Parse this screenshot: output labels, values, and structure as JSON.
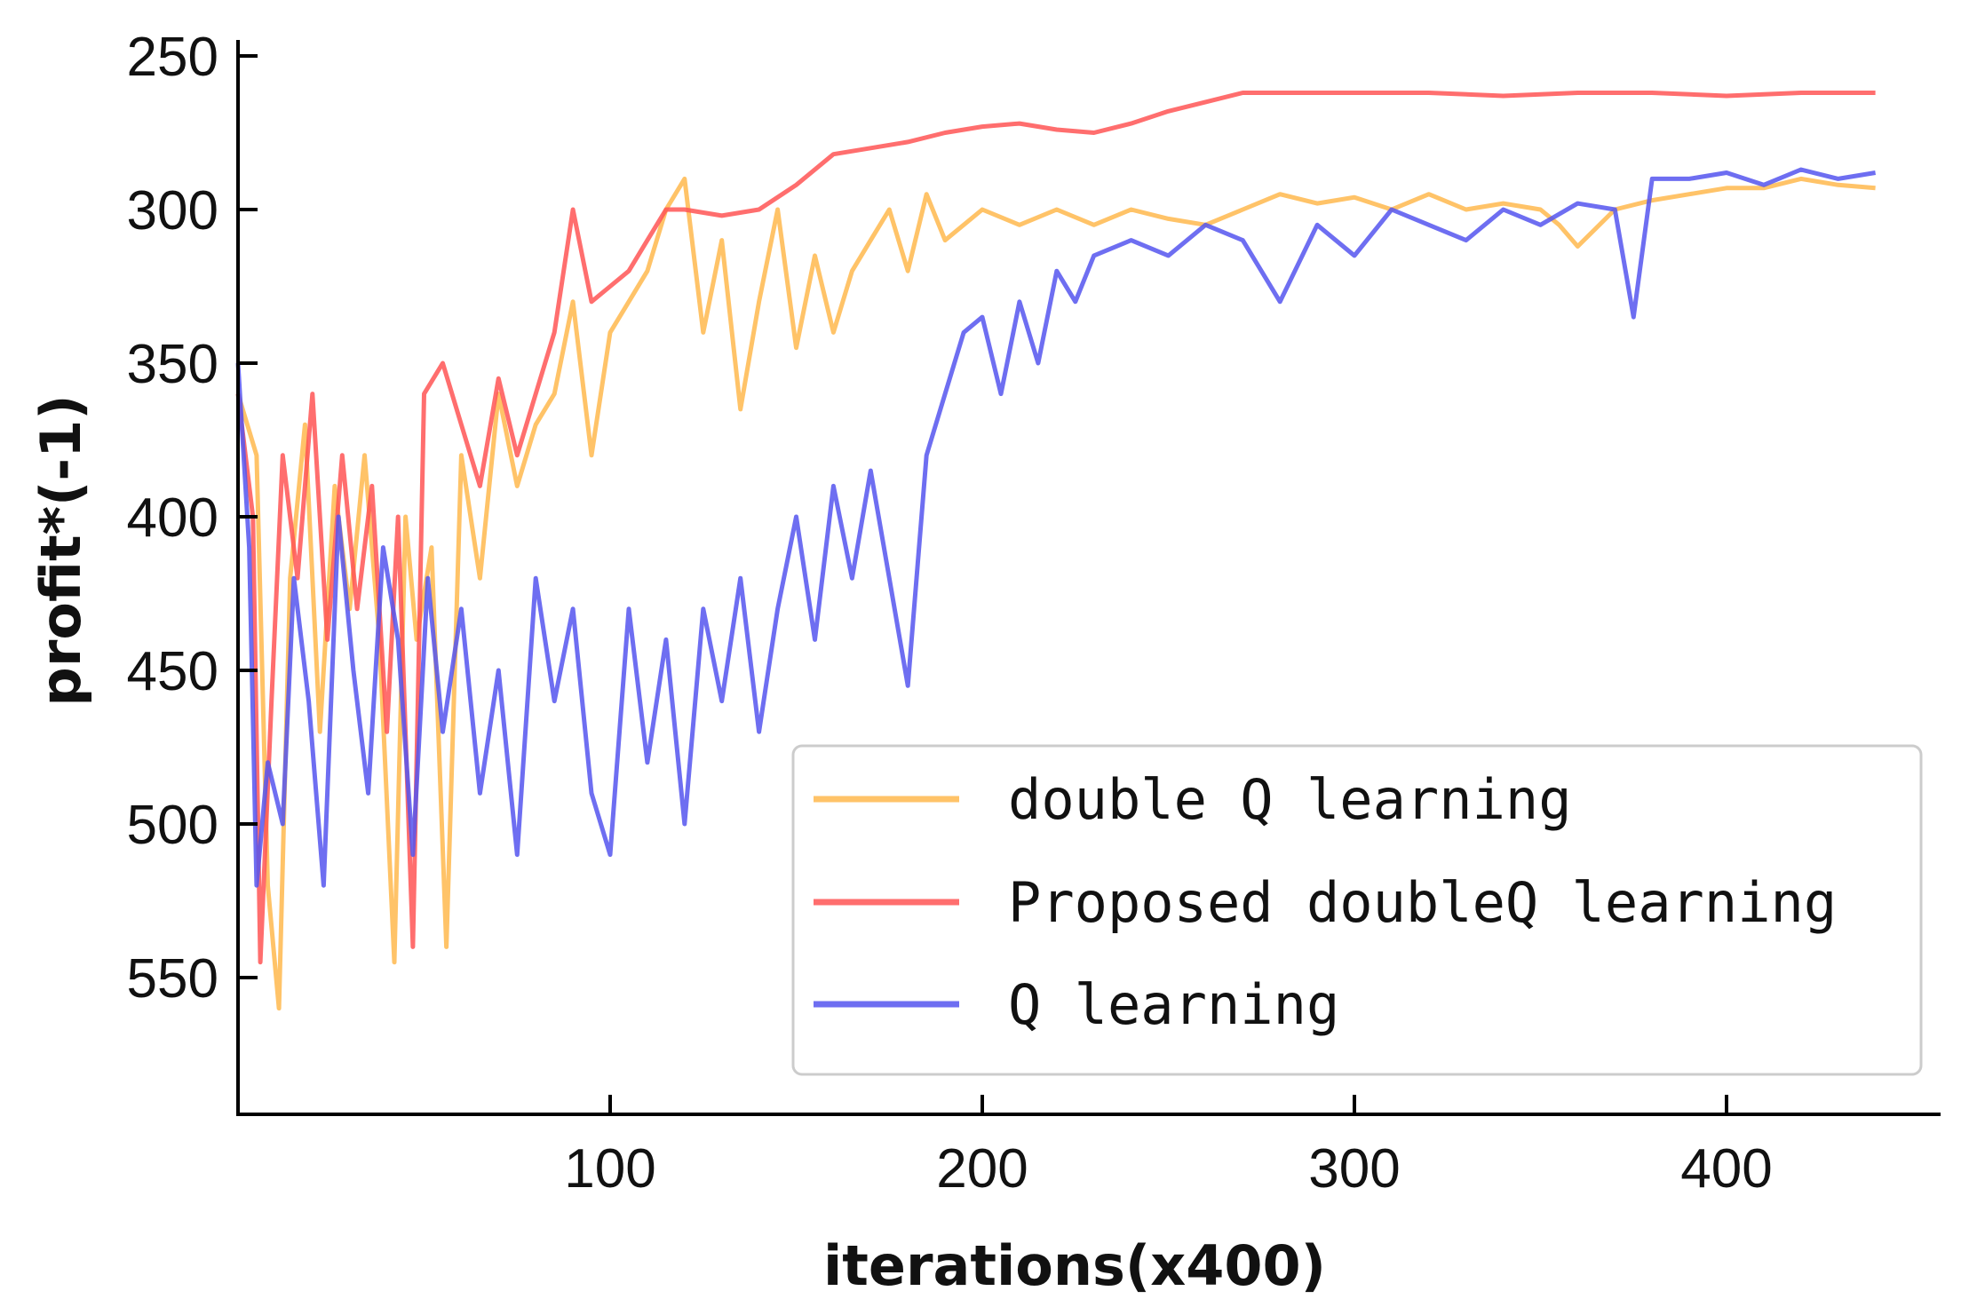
{
  "chart_data": {
    "type": "line",
    "title": "",
    "xlabel": "iterations(x400)",
    "ylabel": "profit*(-1)",
    "xlim": [
      0,
      460
    ],
    "ylim": [
      570,
      245
    ],
    "y_inverted": true,
    "xticks": [
      100,
      200,
      300,
      400
    ],
    "yticks": [
      250,
      300,
      350,
      400,
      450,
      500,
      550
    ],
    "grid": false,
    "legend_position": "lower-right",
    "series": [
      {
        "name": "double Q learning",
        "color": "#ffb84d",
        "points": [
          [
            0,
            360
          ],
          [
            5,
            380
          ],
          [
            8,
            520
          ],
          [
            11,
            560
          ],
          [
            14,
            420
          ],
          [
            18,
            370
          ],
          [
            22,
            470
          ],
          [
            26,
            390
          ],
          [
            30,
            430
          ],
          [
            34,
            380
          ],
          [
            38,
            440
          ],
          [
            42,
            545
          ],
          [
            45,
            400
          ],
          [
            48,
            440
          ],
          [
            52,
            410
          ],
          [
            56,
            540
          ],
          [
            60,
            380
          ],
          [
            65,
            420
          ],
          [
            70,
            360
          ],
          [
            75,
            390
          ],
          [
            80,
            370
          ],
          [
            85,
            360
          ],
          [
            90,
            330
          ],
          [
            95,
            380
          ],
          [
            100,
            340
          ],
          [
            105,
            330
          ],
          [
            110,
            320
          ],
          [
            115,
            300
          ],
          [
            120,
            290
          ],
          [
            125,
            340
          ],
          [
            130,
            310
          ],
          [
            135,
            365
          ],
          [
            140,
            330
          ],
          [
            145,
            300
          ],
          [
            150,
            345
          ],
          [
            155,
            315
          ],
          [
            160,
            340
          ],
          [
            165,
            320
          ],
          [
            170,
            310
          ],
          [
            175,
            300
          ],
          [
            180,
            320
          ],
          [
            185,
            295
          ],
          [
            190,
            310
          ],
          [
            200,
            300
          ],
          [
            210,
            305
          ],
          [
            220,
            300
          ],
          [
            230,
            305
          ],
          [
            240,
            300
          ],
          [
            250,
            303
          ],
          [
            260,
            305
          ],
          [
            270,
            300
          ],
          [
            280,
            295
          ],
          [
            290,
            298
          ],
          [
            300,
            296
          ],
          [
            310,
            300
          ],
          [
            320,
            295
          ],
          [
            330,
            300
          ],
          [
            340,
            298
          ],
          [
            350,
            300
          ],
          [
            355,
            305
          ],
          [
            360,
            312
          ],
          [
            370,
            300
          ],
          [
            380,
            297
          ],
          [
            390,
            295
          ],
          [
            400,
            293
          ],
          [
            410,
            293
          ],
          [
            420,
            290
          ],
          [
            430,
            292
          ],
          [
            440,
            293
          ]
        ]
      },
      {
        "name": "Proposed doubleQ learning",
        "color": "#ff5555",
        "points": [
          [
            0,
            360
          ],
          [
            4,
            400
          ],
          [
            6,
            545
          ],
          [
            9,
            460
          ],
          [
            12,
            380
          ],
          [
            16,
            420
          ],
          [
            20,
            360
          ],
          [
            24,
            440
          ],
          [
            28,
            380
          ],
          [
            32,
            430
          ],
          [
            36,
            390
          ],
          [
            40,
            470
          ],
          [
            43,
            400
          ],
          [
            47,
            540
          ],
          [
            50,
            360
          ],
          [
            55,
            350
          ],
          [
            60,
            370
          ],
          [
            65,
            390
          ],
          [
            70,
            355
          ],
          [
            75,
            380
          ],
          [
            80,
            360
          ],
          [
            85,
            340
          ],
          [
            90,
            300
          ],
          [
            95,
            330
          ],
          [
            100,
            325
          ],
          [
            105,
            320
          ],
          [
            110,
            310
          ],
          [
            115,
            300
          ],
          [
            120,
            300
          ],
          [
            130,
            302
          ],
          [
            140,
            300
          ],
          [
            150,
            292
          ],
          [
            160,
            282
          ],
          [
            170,
            280
          ],
          [
            180,
            278
          ],
          [
            190,
            275
          ],
          [
            200,
            273
          ],
          [
            210,
            272
          ],
          [
            220,
            274
          ],
          [
            230,
            275
          ],
          [
            240,
            272
          ],
          [
            250,
            268
          ],
          [
            260,
            265
          ],
          [
            270,
            262
          ],
          [
            280,
            262
          ],
          [
            300,
            262
          ],
          [
            320,
            262
          ],
          [
            340,
            263
          ],
          [
            360,
            262
          ],
          [
            380,
            262
          ],
          [
            400,
            263
          ],
          [
            420,
            262
          ],
          [
            440,
            262
          ]
        ]
      },
      {
        "name": "Q learning",
        "color": "#5555ee",
        "points": [
          [
            0,
            350
          ],
          [
            3,
            410
          ],
          [
            5,
            520
          ],
          [
            8,
            480
          ],
          [
            12,
            500
          ],
          [
            15,
            420
          ],
          [
            19,
            460
          ],
          [
            23,
            520
          ],
          [
            27,
            400
          ],
          [
            31,
            450
          ],
          [
            35,
            490
          ],
          [
            39,
            410
          ],
          [
            43,
            440
          ],
          [
            47,
            510
          ],
          [
            51,
            420
          ],
          [
            55,
            470
          ],
          [
            60,
            430
          ],
          [
            65,
            490
          ],
          [
            70,
            450
          ],
          [
            75,
            510
          ],
          [
            80,
            420
          ],
          [
            85,
            460
          ],
          [
            90,
            430
          ],
          [
            95,
            490
          ],
          [
            100,
            510
          ],
          [
            105,
            430
          ],
          [
            110,
            480
          ],
          [
            115,
            440
          ],
          [
            120,
            500
          ],
          [
            125,
            430
          ],
          [
            130,
            460
          ],
          [
            135,
            420
          ],
          [
            140,
            470
          ],
          [
            145,
            430
          ],
          [
            150,
            400
          ],
          [
            155,
            440
          ],
          [
            160,
            390
          ],
          [
            165,
            420
          ],
          [
            170,
            385
          ],
          [
            175,
            420
          ],
          [
            180,
            455
          ],
          [
            185,
            380
          ],
          [
            190,
            360
          ],
          [
            195,
            340
          ],
          [
            200,
            335
          ],
          [
            205,
            360
          ],
          [
            210,
            330
          ],
          [
            215,
            350
          ],
          [
            220,
            320
          ],
          [
            225,
            330
          ],
          [
            230,
            315
          ],
          [
            240,
            310
          ],
          [
            250,
            315
          ],
          [
            260,
            305
          ],
          [
            270,
            310
          ],
          [
            280,
            330
          ],
          [
            290,
            305
          ],
          [
            300,
            315
          ],
          [
            310,
            300
          ],
          [
            320,
            305
          ],
          [
            330,
            310
          ],
          [
            340,
            300
          ],
          [
            350,
            305
          ],
          [
            360,
            298
          ],
          [
            370,
            300
          ],
          [
            375,
            335
          ],
          [
            380,
            290
          ],
          [
            390,
            290
          ],
          [
            400,
            288
          ],
          [
            410,
            292
          ],
          [
            420,
            287
          ],
          [
            430,
            290
          ],
          [
            440,
            288
          ]
        ]
      }
    ]
  }
}
